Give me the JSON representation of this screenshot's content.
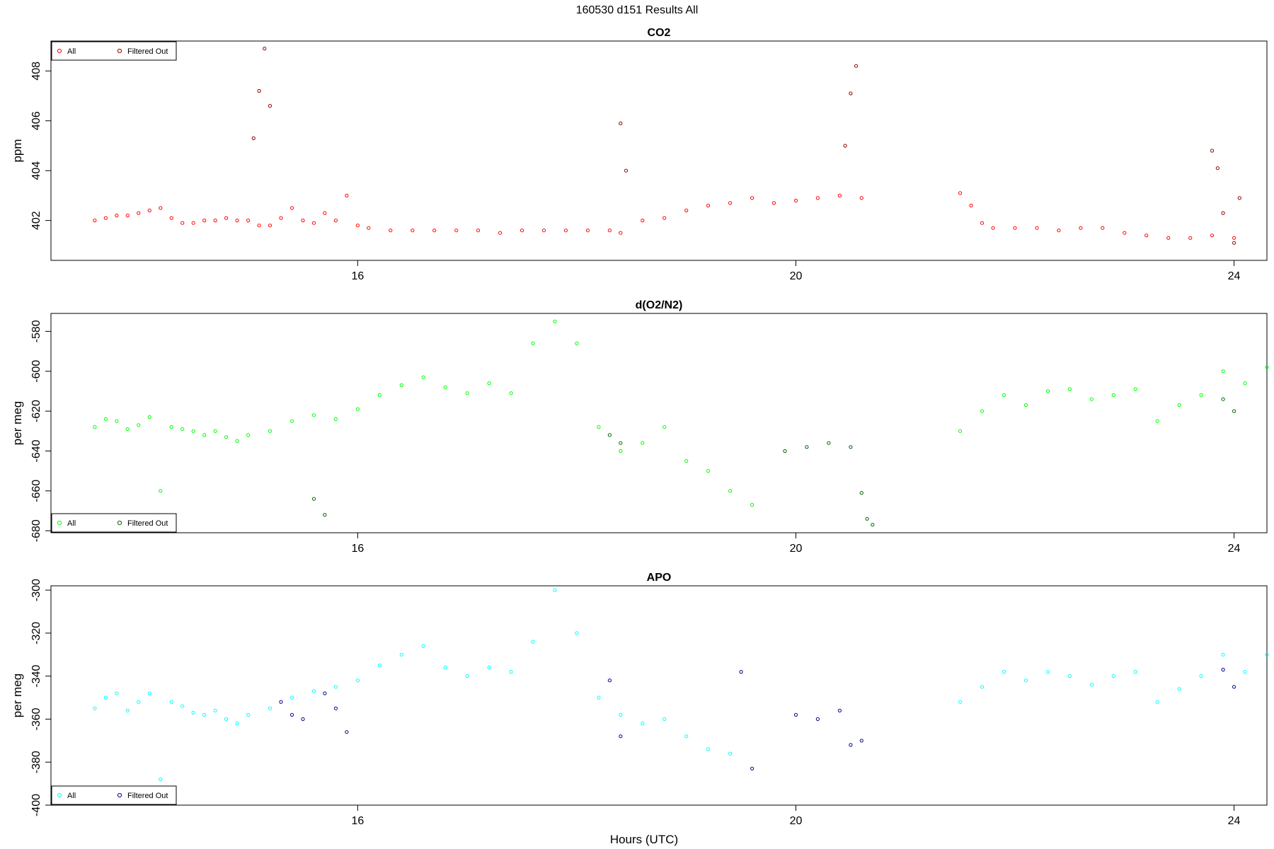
{
  "figure": {
    "title": "160530   d151   Results All",
    "xlabel": "Hours (UTC)"
  },
  "legend": {
    "all_label": "All",
    "filtered_label": "Filtered Out"
  },
  "chart_data": [
    {
      "type": "scatter",
      "title": "CO2",
      "xlabel": "Hours (UTC)",
      "ylabel": "ppm",
      "xlim": [
        13.2,
        24.3
      ],
      "ylim": [
        400.4,
        409.2
      ],
      "xticks": [
        16,
        20,
        24
      ],
      "yticks": [
        402,
        404,
        406,
        408
      ],
      "legend_position": "top-left",
      "colors": {
        "all": "#ff0000",
        "filtered": "#8b0000"
      },
      "series": [
        {
          "name": "All",
          "points": [
            [
              13.6,
              402.0
            ],
            [
              13.7,
              402.1
            ],
            [
              13.8,
              402.2
            ],
            [
              13.9,
              402.2
            ],
            [
              14.0,
              402.3
            ],
            [
              14.1,
              402.4
            ],
            [
              14.2,
              402.5
            ],
            [
              14.3,
              402.1
            ],
            [
              14.4,
              401.9
            ],
            [
              14.5,
              401.9
            ],
            [
              14.6,
              402.0
            ],
            [
              14.7,
              402.0
            ],
            [
              14.8,
              402.1
            ],
            [
              14.9,
              402.0
            ],
            [
              15.0,
              402.0
            ],
            [
              15.1,
              401.8
            ],
            [
              15.2,
              401.8
            ],
            [
              15.3,
              402.1
            ],
            [
              15.4,
              402.5
            ],
            [
              15.5,
              402.0
            ],
            [
              15.6,
              401.9
            ],
            [
              15.7,
              402.3
            ],
            [
              15.8,
              402.0
            ],
            [
              15.9,
              403.0
            ],
            [
              16.0,
              401.8
            ],
            [
              16.1,
              401.7
            ],
            [
              16.3,
              401.6
            ],
            [
              16.5,
              401.6
            ],
            [
              16.7,
              401.6
            ],
            [
              16.9,
              401.6
            ],
            [
              17.1,
              401.6
            ],
            [
              17.3,
              401.5
            ],
            [
              17.5,
              401.6
            ],
            [
              17.7,
              401.6
            ],
            [
              17.9,
              401.6
            ],
            [
              18.1,
              401.6
            ],
            [
              18.3,
              401.6
            ],
            [
              18.4,
              401.5
            ],
            [
              18.6,
              402.0
            ],
            [
              18.8,
              402.1
            ],
            [
              19.0,
              402.4
            ],
            [
              19.2,
              402.6
            ],
            [
              19.4,
              402.7
            ],
            [
              19.6,
              402.9
            ],
            [
              19.8,
              402.7
            ],
            [
              20.0,
              402.8
            ],
            [
              20.2,
              402.9
            ],
            [
              20.4,
              403.0
            ],
            [
              20.6,
              402.9
            ],
            [
              21.5,
              403.1
            ],
            [
              21.6,
              402.6
            ],
            [
              21.7,
              401.9
            ],
            [
              21.8,
              401.7
            ],
            [
              22.0,
              401.7
            ],
            [
              22.2,
              401.7
            ],
            [
              22.4,
              401.6
            ],
            [
              22.6,
              401.7
            ],
            [
              22.8,
              401.7
            ],
            [
              23.0,
              401.5
            ],
            [
              23.2,
              401.4
            ],
            [
              23.4,
              401.3
            ],
            [
              23.6,
              401.3
            ],
            [
              23.8,
              401.4
            ],
            [
              24.0,
              401.3
            ]
          ]
        },
        {
          "name": "Filtered Out",
          "points": [
            [
              15.15,
              408.9
            ],
            [
              15.1,
              407.2
            ],
            [
              15.2,
              406.6
            ],
            [
              15.05,
              405.3
            ],
            [
              18.4,
              405.9
            ],
            [
              18.45,
              404.0
            ],
            [
              20.55,
              408.2
            ],
            [
              20.5,
              407.1
            ],
            [
              20.45,
              405.0
            ],
            [
              23.8,
              404.8
            ],
            [
              23.85,
              404.1
            ],
            [
              23.9,
              402.3
            ],
            [
              24.0,
              401.1
            ],
            [
              24.05,
              402.9
            ]
          ]
        }
      ]
    },
    {
      "type": "scatter",
      "title": "d(O2/N2)",
      "xlabel": "Hours (UTC)",
      "ylabel": "per meg",
      "xlim": [
        13.2,
        24.3
      ],
      "ylim": [
        -681,
        -571
      ],
      "xticks": [
        16,
        20,
        24
      ],
      "yticks": [
        -680,
        -660,
        -640,
        -620,
        -600,
        -580
      ],
      "legend_position": "bottom-left",
      "colors": {
        "all": "#00ff00",
        "filtered": "#006400"
      },
      "series": [
        {
          "name": "All",
          "points": [
            [
              13.6,
              -628
            ],
            [
              13.7,
              -624
            ],
            [
              13.8,
              -625
            ],
            [
              13.9,
              -629
            ],
            [
              14.0,
              -627
            ],
            [
              14.1,
              -623
            ],
            [
              14.2,
              -660
            ],
            [
              14.3,
              -628
            ],
            [
              14.4,
              -629
            ],
            [
              14.5,
              -630
            ],
            [
              14.6,
              -632
            ],
            [
              14.7,
              -630
            ],
            [
              14.8,
              -633
            ],
            [
              14.9,
              -635
            ],
            [
              15.0,
              -632
            ],
            [
              15.2,
              -630
            ],
            [
              15.4,
              -625
            ],
            [
              15.6,
              -622
            ],
            [
              15.8,
              -624
            ],
            [
              16.0,
              -619
            ],
            [
              16.2,
              -612
            ],
            [
              16.4,
              -607
            ],
            [
              16.6,
              -603
            ],
            [
              16.8,
              -608
            ],
            [
              17.0,
              -611
            ],
            [
              17.2,
              -606
            ],
            [
              17.4,
              -611
            ],
            [
              17.6,
              -586
            ],
            [
              17.8,
              -575
            ],
            [
              18.0,
              -586
            ],
            [
              18.2,
              -628
            ],
            [
              18.4,
              -640
            ],
            [
              18.6,
              -636
            ],
            [
              18.8,
              -628
            ],
            [
              19.0,
              -645
            ],
            [
              19.2,
              -650
            ],
            [
              19.4,
              -660
            ],
            [
              19.6,
              -667
            ],
            [
              21.5,
              -630
            ],
            [
              21.7,
              -620
            ],
            [
              21.9,
              -612
            ],
            [
              22.1,
              -617
            ],
            [
              22.3,
              -610
            ],
            [
              22.5,
              -609
            ],
            [
              22.7,
              -614
            ],
            [
              22.9,
              -612
            ],
            [
              23.1,
              -609
            ],
            [
              23.3,
              -625
            ],
            [
              23.5,
              -617
            ],
            [
              23.7,
              -612
            ],
            [
              23.9,
              -600
            ],
            [
              24.1,
              -606
            ],
            [
              24.3,
              -598
            ]
          ]
        },
        {
          "name": "Filtered Out",
          "points": [
            [
              15.6,
              -664
            ],
            [
              15.7,
              -672
            ],
            [
              18.3,
              -632
            ],
            [
              18.4,
              -636
            ],
            [
              19.9,
              -640
            ],
            [
              20.1,
              -638
            ],
            [
              20.3,
              -636
            ],
            [
              20.5,
              -638
            ],
            [
              20.6,
              -661
            ],
            [
              20.65,
              -674
            ],
            [
              20.7,
              -677
            ],
            [
              23.9,
              -614
            ],
            [
              24.0,
              -620
            ]
          ]
        }
      ]
    },
    {
      "type": "scatter",
      "title": "APO",
      "xlabel": "Hours (UTC)",
      "ylabel": "per meg",
      "xlim": [
        13.2,
        24.3
      ],
      "ylim": [
        -400,
        -298
      ],
      "xticks": [
        16,
        20,
        24
      ],
      "yticks": [
        -400,
        -380,
        -360,
        -340,
        -320,
        -300
      ],
      "legend_position": "bottom-left",
      "colors": {
        "all": "#00ffff",
        "filtered": "#00008b"
      },
      "series": [
        {
          "name": "All",
          "points": [
            [
              13.6,
              -355
            ],
            [
              13.7,
              -350
            ],
            [
              13.8,
              -348
            ],
            [
              13.9,
              -356
            ],
            [
              14.0,
              -352
            ],
            [
              14.1,
              -348
            ],
            [
              14.2,
              -388
            ],
            [
              14.3,
              -352
            ],
            [
              14.4,
              -354
            ],
            [
              14.5,
              -357
            ],
            [
              14.6,
              -358
            ],
            [
              14.7,
              -356
            ],
            [
              14.8,
              -360
            ],
            [
              14.9,
              -362
            ],
            [
              15.0,
              -358
            ],
            [
              15.2,
              -355
            ],
            [
              15.4,
              -350
            ],
            [
              15.6,
              -347
            ],
            [
              15.8,
              -345
            ],
            [
              16.0,
              -342
            ],
            [
              16.2,
              -335
            ],
            [
              16.4,
              -330
            ],
            [
              16.6,
              -326
            ],
            [
              16.8,
              -336
            ],
            [
              17.0,
              -340
            ],
            [
              17.2,
              -336
            ],
            [
              17.4,
              -338
            ],
            [
              17.6,
              -324
            ],
            [
              17.8,
              -300
            ],
            [
              18.0,
              -320
            ],
            [
              18.2,
              -350
            ],
            [
              18.4,
              -358
            ],
            [
              18.6,
              -362
            ],
            [
              18.8,
              -360
            ],
            [
              19.0,
              -368
            ],
            [
              19.2,
              -374
            ],
            [
              19.4,
              -376
            ],
            [
              21.5,
              -352
            ],
            [
              21.7,
              -345
            ],
            [
              21.9,
              -338
            ],
            [
              22.1,
              -342
            ],
            [
              22.3,
              -338
            ],
            [
              22.5,
              -340
            ],
            [
              22.7,
              -344
            ],
            [
              22.9,
              -340
            ],
            [
              23.1,
              -338
            ],
            [
              23.3,
              -352
            ],
            [
              23.5,
              -346
            ],
            [
              23.7,
              -340
            ],
            [
              23.9,
              -330
            ],
            [
              24.1,
              -338
            ],
            [
              24.3,
              -330
            ]
          ]
        },
        {
          "name": "Filtered Out",
          "points": [
            [
              15.3,
              -352
            ],
            [
              15.4,
              -358
            ],
            [
              15.5,
              -360
            ],
            [
              15.7,
              -348
            ],
            [
              15.8,
              -355
            ],
            [
              15.9,
              -366
            ],
            [
              18.3,
              -342
            ],
            [
              18.4,
              -368
            ],
            [
              19.5,
              -338
            ],
            [
              19.6,
              -383
            ],
            [
              20.0,
              -358
            ],
            [
              20.2,
              -360
            ],
            [
              20.4,
              -356
            ],
            [
              20.5,
              -372
            ],
            [
              20.6,
              -370
            ],
            [
              23.9,
              -337
            ],
            [
              24.0,
              -345
            ]
          ]
        }
      ]
    }
  ]
}
